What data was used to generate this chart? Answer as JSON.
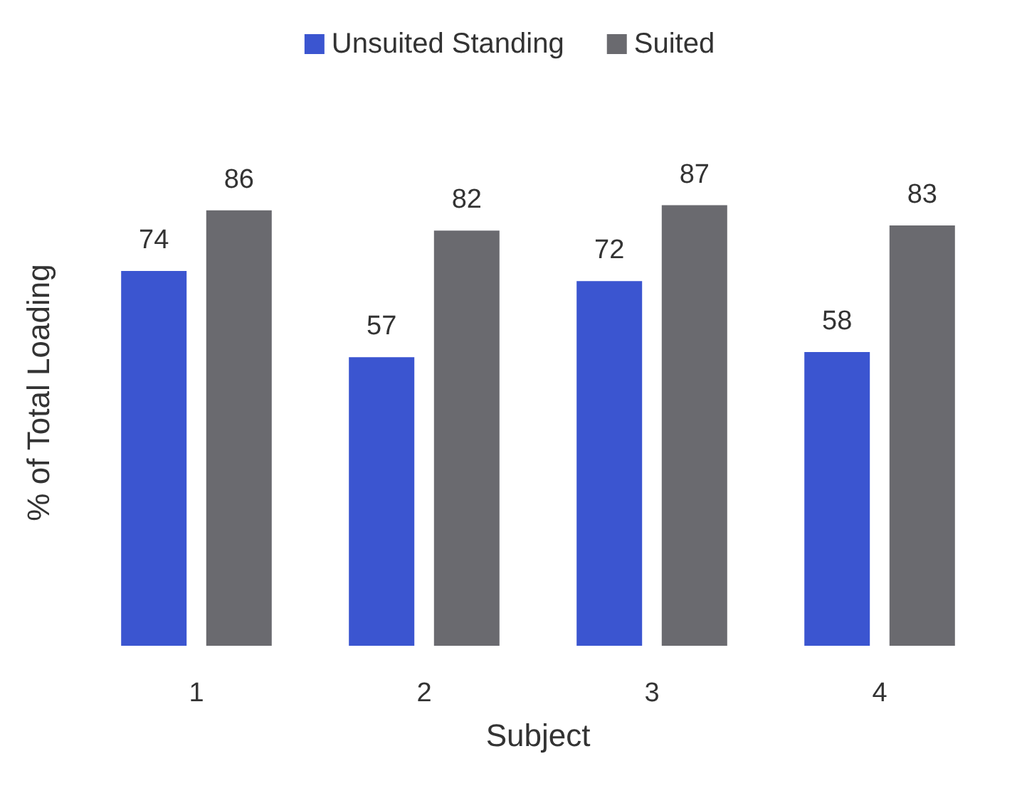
{
  "chart_data": {
    "type": "bar",
    "xlabel": "Subject",
    "ylabel": "% of Total Loading",
    "categories": [
      "1",
      "2",
      "3",
      "4"
    ],
    "series": [
      {
        "name": "Unsuited Standing",
        "color": "#3b55d0",
        "values": [
          74,
          57,
          72,
          58
        ]
      },
      {
        "name": "Suited",
        "color": "#6a6a6f",
        "values": [
          86,
          82,
          87,
          83
        ]
      }
    ],
    "data_labels": true,
    "legend": "top",
    "grid": false
  }
}
